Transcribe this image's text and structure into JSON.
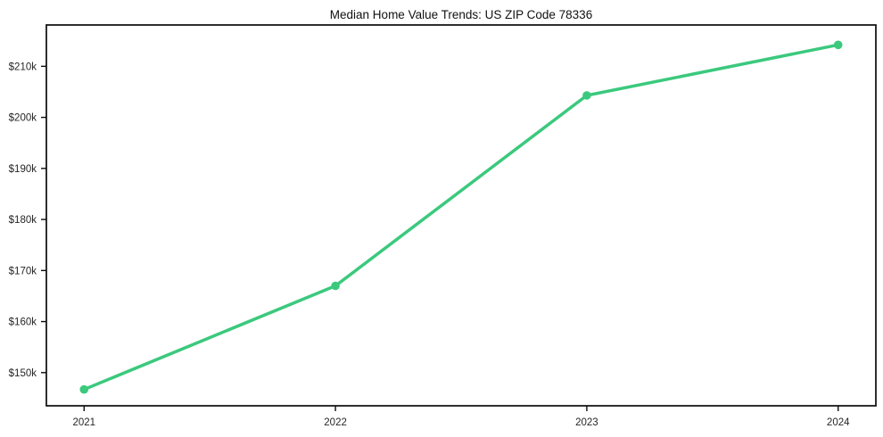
{
  "figure": {
    "background": "#ffffff",
    "line_color": "#3bc97d",
    "marker_color": "#3bc97d",
    "spine_color": "#0b0b0b",
    "tick_label_color": "#262626"
  },
  "chart_data": {
    "type": "line",
    "title": "Median Home Value Trends: US ZIP Code 78336",
    "x": [
      2021,
      2022,
      2023,
      2024
    ],
    "values": [
      146700,
      167000,
      204300,
      214200
    ],
    "x_tick_labels": [
      "2021",
      "2022",
      "2023",
      "2024"
    ],
    "y_tick_values": [
      150000,
      160000,
      170000,
      180000,
      190000,
      200000,
      210000
    ],
    "y_tick_labels": [
      "$150k",
      "$160k",
      "$170k",
      "$180k",
      "$190k",
      "$200k",
      "$210k"
    ],
    "xlabel": "",
    "ylabel": "",
    "xlim": [
      2020.85,
      2024.15
    ],
    "ylim": [
      143500,
      218100
    ],
    "grid": false,
    "legend": "none",
    "marker": "circle",
    "line_width": 3.5,
    "marker_radius": 4.8
  }
}
